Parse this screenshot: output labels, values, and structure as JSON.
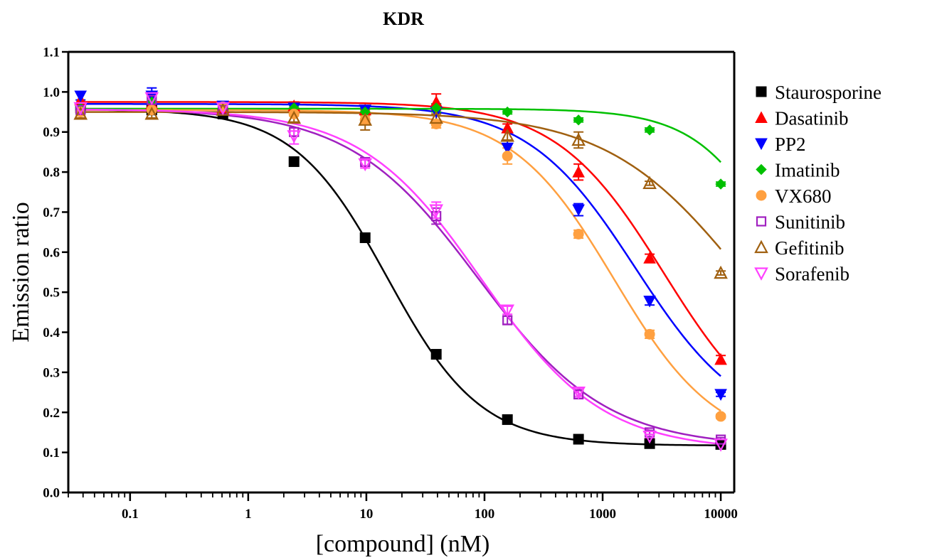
{
  "chart_data": {
    "type": "scatter",
    "title": "KDR",
    "xlabel": "[compound] (nM)",
    "ylabel": "Emission ratio",
    "xscale": "log",
    "xlim": [
      0.03,
      13000
    ],
    "ylim": [
      0.0,
      1.1
    ],
    "x_ticks": [
      0.1,
      1,
      10,
      100,
      1000,
      10000
    ],
    "x_tick_labels": [
      "0.1",
      "1",
      "10",
      "100",
      "1000",
      "10000"
    ],
    "y_ticks": [
      0.0,
      0.1,
      0.2,
      0.3,
      0.4,
      0.5,
      0.6,
      0.7,
      0.8,
      0.9,
      1.0,
      1.1
    ],
    "y_tick_labels": [
      "0.0",
      "0.1",
      "0.2",
      "0.3",
      "0.4",
      "0.5",
      "0.6",
      "0.7",
      "0.8",
      "0.9",
      "1.0",
      "1.1"
    ],
    "legend_position": "right",
    "grid": false,
    "x": [
      0.0381,
      0.1526,
      0.6104,
      2.441,
      9.766,
      39.06,
      156.3,
      625,
      2500,
      10000
    ],
    "series": [
      {
        "name": "Staurosporine",
        "color": "#000000",
        "marker": "square-filled",
        "values": [
          0.96,
          0.955,
          0.945,
          0.826,
          0.636,
          0.345,
          0.182,
          0.133,
          0.122,
          0.12
        ],
        "errors": [
          0.01,
          0.01,
          0.01,
          0.005,
          0.005,
          0.005,
          0.005,
          0.005,
          0.005,
          0.005
        ],
        "fit": {
          "top": 0.957,
          "bottom": 0.117,
          "ec50": 15,
          "hill": 1.1
        }
      },
      {
        "name": "Dasatinib",
        "color": "#ff0000",
        "marker": "triangle-up-filled",
        "values": [
          0.98,
          0.97,
          0.96,
          0.965,
          0.955,
          0.975,
          0.91,
          0.8,
          0.585,
          0.332
        ],
        "errors": [
          0.02,
          0.02,
          0.01,
          0.01,
          0.01,
          0.02,
          0.01,
          0.02,
          0.01,
          0.01
        ],
        "fit": {
          "top": 0.975,
          "bottom": 0.12,
          "ec50": 3300,
          "hill": 0.95
        }
      },
      {
        "name": "PP2",
        "color": "#0000ff",
        "marker": "triangle-down-filled",
        "values": [
          0.99,
          0.99,
          0.965,
          0.96,
          0.955,
          0.95,
          0.86,
          0.706,
          0.478,
          0.245
        ],
        "errors": [
          0.01,
          0.02,
          0.01,
          0.01,
          0.01,
          0.02,
          0.02,
          0.015,
          0.01,
          0.005
        ],
        "fit": {
          "top": 0.97,
          "bottom": 0.15,
          "ec50": 1900,
          "hill": 0.95
        }
      },
      {
        "name": "Imatinib",
        "color": "#00c000",
        "marker": "diamond-filled",
        "values": [
          0.96,
          0.975,
          0.96,
          0.96,
          0.95,
          0.96,
          0.95,
          0.93,
          0.905,
          0.77
        ],
        "errors": [
          0.01,
          0.01,
          0.01,
          0.005,
          0.01,
          0.01,
          0.005,
          0.005,
          0.005,
          0.005
        ],
        "fit": {
          "top": 0.958,
          "bottom": 0.12,
          "ec50": 40000,
          "hill": 1.2
        }
      },
      {
        "name": "VX680",
        "color": "#ffa040",
        "marker": "circle-filled",
        "values": [
          0.95,
          0.955,
          0.963,
          0.945,
          0.93,
          0.92,
          0.84,
          0.645,
          0.395,
          0.19
        ],
        "errors": [
          0.01,
          0.01,
          0.005,
          0.005,
          0.01,
          0.01,
          0.02,
          0.01,
          0.01,
          0.005
        ],
        "fit": {
          "top": 0.955,
          "bottom": 0.11,
          "ec50": 1250,
          "hill": 1.0
        }
      },
      {
        "name": "Sunitinib",
        "color": "#a020c0",
        "marker": "square-open",
        "values": [
          0.955,
          0.98,
          0.955,
          0.9,
          0.825,
          0.69,
          0.43,
          0.245,
          0.15,
          0.132
        ],
        "errors": [
          0.01,
          0.015,
          0.01,
          0.01,
          0.01,
          0.02,
          0.01,
          0.01,
          0.005,
          0.005
        ],
        "fit": {
          "top": 0.958,
          "bottom": 0.113,
          "ec50": 88,
          "hill": 0.8
        }
      },
      {
        "name": "Gefitinib",
        "color": "#a06010",
        "marker": "triangle-up-open",
        "values": [
          0.945,
          0.945,
          0.955,
          0.935,
          0.93,
          0.935,
          0.89,
          0.88,
          0.772,
          0.548
        ],
        "errors": [
          0.01,
          0.01,
          0.005,
          0.01,
          0.025,
          0.01,
          0.01,
          0.02,
          0.005,
          0.005
        ],
        "fit": {
          "top": 0.95,
          "bottom": 0.12,
          "ec50": 16000,
          "hill": 0.75
        }
      },
      {
        "name": "Sorafenib",
        "color": "#ff40ff",
        "marker": "triangle-down-open",
        "values": [
          0.96,
          0.985,
          0.96,
          0.89,
          0.82,
          0.705,
          0.455,
          0.25,
          0.14,
          0.12
        ],
        "errors": [
          0.01,
          0.01,
          0.01,
          0.02,
          0.01,
          0.02,
          0.01,
          0.01,
          0.005,
          0.005
        ],
        "fit": {
          "top": 0.957,
          "bottom": 0.105,
          "ec50": 95,
          "hill": 0.85
        }
      }
    ]
  }
}
